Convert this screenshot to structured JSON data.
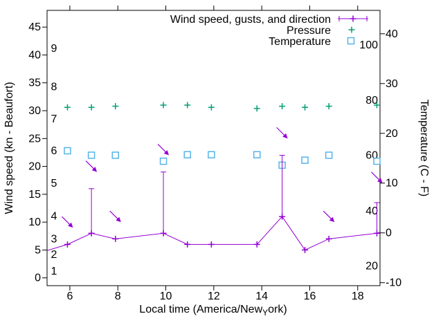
{
  "colors": {
    "wind": "#9400d3",
    "pressure": "#009e73",
    "temperature": "#56b4e9",
    "axis": "#000000",
    "background": "#ffffff"
  },
  "legend": {
    "wind": "Wind speed, gusts, and direction",
    "pressure": "Pressure",
    "temperature": "Temperature"
  },
  "axes": {
    "left_title": "Wind speed (kn - Beaufort)",
    "right_title": "Temperature (C - F)",
    "x_title_pre": "Local time (America/New",
    "x_title_sub": "Y",
    "x_title_post": "ork)",
    "x_ticks": [
      6,
      8,
      10,
      12,
      14,
      16,
      18
    ],
    "kn_ticks": [
      0,
      5,
      10,
      15,
      20,
      25,
      30,
      35,
      40,
      45
    ],
    "beaufort_labels": [
      {
        "label": "1",
        "kn": 1.2
      },
      {
        "label": "2",
        "kn": 4.2
      },
      {
        "label": "3",
        "kn": 7.0
      },
      {
        "label": "4",
        "kn": 11.1
      },
      {
        "label": "5",
        "kn": 17.0
      },
      {
        "label": "6",
        "kn": 22.8
      },
      {
        "label": "7",
        "kn": 28.5
      },
      {
        "label": "8",
        "kn": 34.3
      },
      {
        "label": "9",
        "kn": 41.2
      }
    ],
    "c_ticks": [
      -10,
      0,
      10,
      20,
      30,
      40
    ],
    "f_labels": [
      {
        "label": "20",
        "c": -6.67
      },
      {
        "label": "40",
        "c": 4.44
      },
      {
        "label": "60",
        "c": 15.56
      },
      {
        "label": "80",
        "c": 26.67
      },
      {
        "label": "100",
        "c": 37.78
      }
    ],
    "x_range": [
      5.05,
      18.93
    ],
    "kn_range": [
      -1.4,
      48.0
    ],
    "c_range": [
      -10.6,
      44.7
    ]
  },
  "chart_data": {
    "type": "line",
    "title": "Wind speed, gusts, and direction / Pressure / Temperature",
    "xlabel": "Local time (America/New_York)",
    "ylabel_left": "Wind speed (kn - Beaufort)",
    "ylabel_right": "Temperature (C - F)",
    "x": [
      5.9,
      6.9,
      7.9,
      9.9,
      10.9,
      11.9,
      13.8,
      14.85,
      15.8,
      16.8,
      18.8
    ],
    "series": [
      {
        "name": "wind_speed_kn",
        "values": [
          6,
          8,
          7,
          8,
          6,
          6,
          6,
          11,
          5,
          7,
          8
        ]
      },
      {
        "name": "gusts_kn",
        "values": [
          null,
          16,
          null,
          19,
          null,
          null,
          null,
          22,
          null,
          null,
          13.5
        ]
      },
      {
        "name": "pressure_kn_axis_position",
        "values": [
          30.6,
          30.6,
          30.8,
          31.0,
          31.0,
          30.6,
          30.4,
          30.8,
          30.6,
          30.8,
          31.0
        ]
      },
      {
        "name": "temperature_c",
        "values": [
          16.5,
          15.6,
          15.6,
          14.4,
          15.7,
          15.7,
          15.7,
          13.6,
          14.6,
          15.6,
          14.4
        ]
      }
    ],
    "wind_direction_arrows": [
      {
        "t": 5.9,
        "kn": 10,
        "dir": "down-right"
      },
      {
        "t": 6.9,
        "kn": 20,
        "dir": "down-right"
      },
      {
        "t": 7.9,
        "kn": 11,
        "dir": "down-right"
      },
      {
        "t": 9.9,
        "kn": 23,
        "dir": "down-right"
      },
      {
        "t": 14.85,
        "kn": 26,
        "dir": "down-right"
      },
      {
        "t": 16.8,
        "kn": 11,
        "dir": "down-right"
      },
      {
        "t": 18.8,
        "kn": 18,
        "dir": "down-right"
      }
    ],
    "wind_line_edge_points": {
      "start": {
        "t": 5.05,
        "kn": 4.9
      },
      "end": {
        "t": 18.93,
        "kn": 8.2
      }
    },
    "grid": false,
    "legend_position": "top-right-inside"
  }
}
